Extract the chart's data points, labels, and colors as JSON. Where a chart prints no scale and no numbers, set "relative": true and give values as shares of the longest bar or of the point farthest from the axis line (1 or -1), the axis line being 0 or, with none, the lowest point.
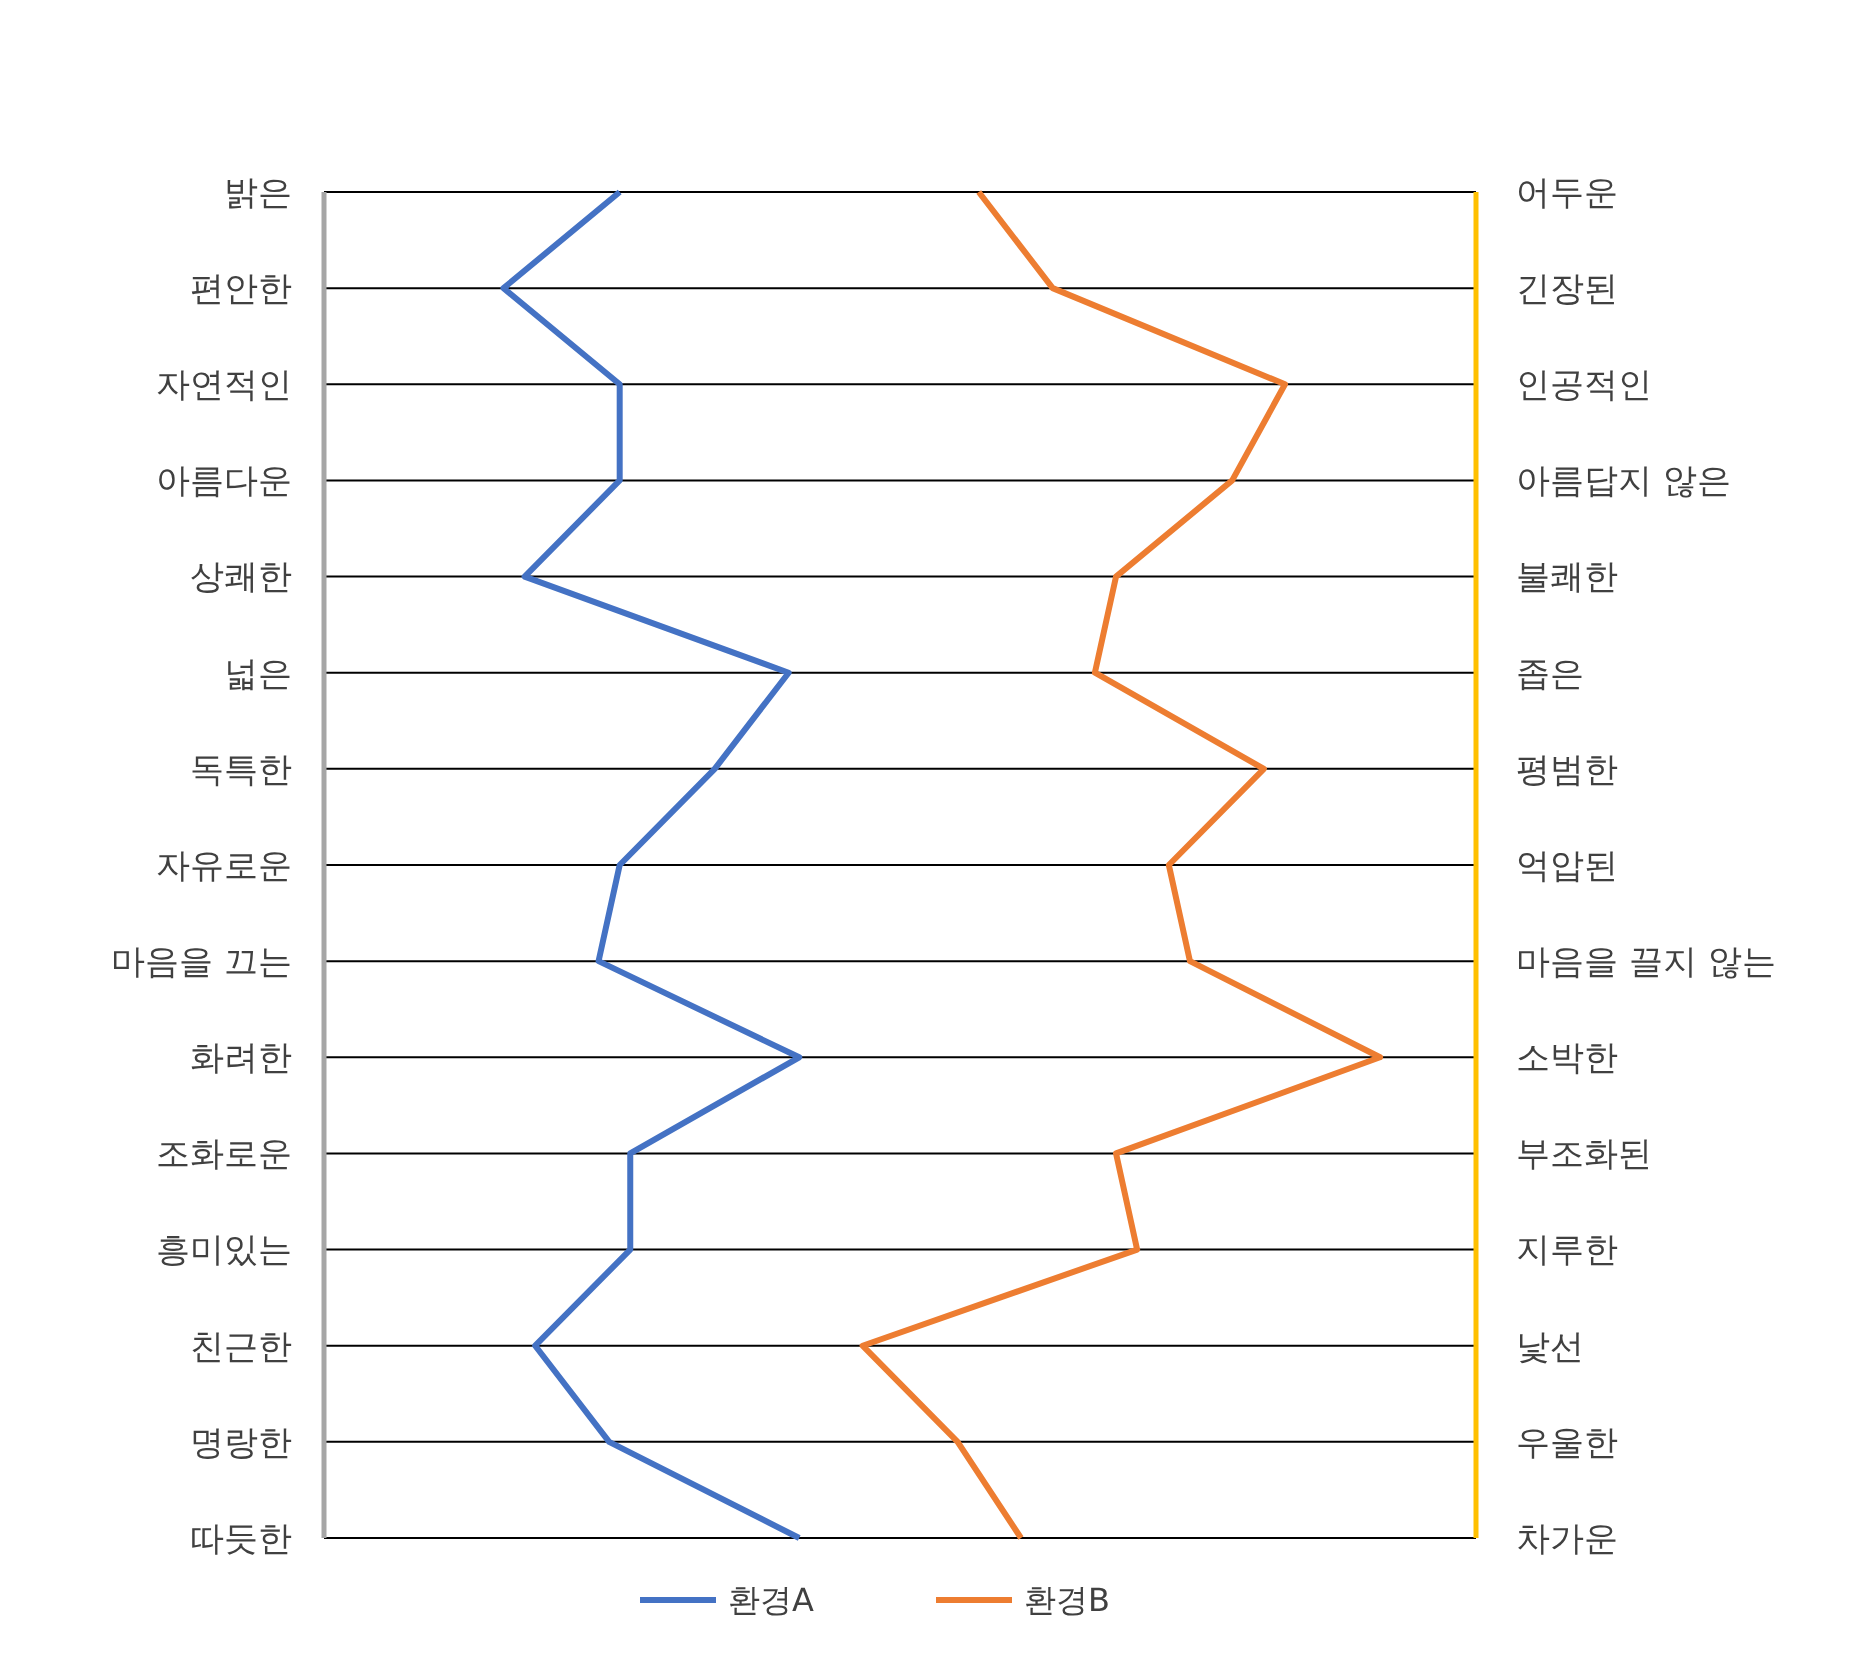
{
  "chart_data": {
    "type": "line",
    "orientation": "horizontal",
    "relative": true,
    "grid": "y",
    "legend": "bottom",
    "marker": "none",
    "line_style": "solid",
    "categories": [
      "밝은",
      "편안한",
      "자연적인",
      "아름다운",
      "상쾌한",
      "넓은",
      "독특한",
      "자유로운",
      "마음을 끄는",
      "화려한",
      "조화로운",
      "흥미있는",
      "친근한",
      "명랑한",
      "따듯한"
    ],
    "y2_categories": [
      "어두운",
      "긴장된",
      "인공적인",
      "아름답지 않은",
      "불쾌한",
      "좁은",
      "평범한",
      "억압된",
      "마음을 끌지 않는",
      "소박한",
      "부조화된",
      "지루한",
      "낯선",
      "우울한",
      "차가운"
    ],
    "series": [
      {
        "name": "환경A",
        "color": "#4472c4",
        "values": [
          0.28,
          0.17,
          0.28,
          0.28,
          0.19,
          0.44,
          0.37,
          0.28,
          0.26,
          0.45,
          0.29,
          0.29,
          0.2,
          0.27,
          0.45
        ]
      },
      {
        "name": "환경B",
        "color": "#ed7d31",
        "values": [
          0.62,
          0.69,
          0.91,
          0.86,
          0.75,
          0.73,
          0.89,
          0.8,
          0.82,
          1,
          0.75,
          0.77,
          0.51,
          0.6,
          0.66
        ]
      }
    ]
  }
}
